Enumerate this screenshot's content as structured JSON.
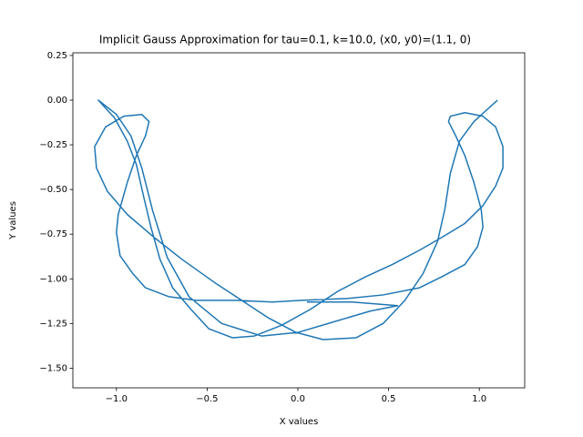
{
  "chart_data": {
    "type": "line",
    "title": "Implicit Gauss Approximation for tau=0.1, k=10.0, (x0, y0)=(1.1, 0)",
    "xlabel": "X values",
    "ylabel": "Y values",
    "color": "#1f77b4",
    "xlim": [
      -1.24,
      1.25
    ],
    "ylim": [
      -1.61,
      0.265
    ],
    "xticks": [
      {
        "value": -1.0,
        "label": "−1.0"
      },
      {
        "value": -0.5,
        "label": "−0.5"
      },
      {
        "value": 0.0,
        "label": "0.0"
      },
      {
        "value": 0.5,
        "label": "0.5"
      },
      {
        "value": 1.0,
        "label": "1.0"
      }
    ],
    "yticks": [
      0.25,
      {
        "value": 0.0,
        "label": "0.00"
      },
      {
        "value": -0.25,
        "label": "−0.25"
      },
      {
        "value": -0.5,
        "label": "−0.50"
      },
      {
        "value": -0.75,
        "label": "−0.75"
      },
      {
        "value": -1.0,
        "label": "−1.00"
      },
      {
        "value": -1.25,
        "label": "−1.25"
      },
      {
        "value": -1.5,
        "label": "−1.50"
      }
    ],
    "x": [
      1.1,
      0.97,
      0.89,
      0.84,
      0.81,
      0.77,
      0.69,
      0.59,
      0.47,
      0.32,
      0.14,
      -0.01,
      -0.16,
      -0.31,
      -0.46,
      -0.64,
      -0.79,
      -0.94,
      -1.05,
      -1.11,
      -1.12,
      -1.06,
      -0.96,
      -0.86,
      -0.82,
      -0.84,
      -0.89,
      -0.94,
      -0.99,
      -1.0,
      -0.98,
      -0.91,
      -0.84,
      -0.71,
      -0.56,
      -0.34,
      -0.14,
      0.02,
      0.27,
      0.47,
      0.67,
      0.79,
      0.92,
      0.99,
      1.02,
      1.01,
      0.97,
      0.92,
      0.87,
      0.83,
      0.84,
      0.92,
      1.02,
      1.09,
      1.13,
      1.13,
      1.09,
      1.02,
      0.92,
      0.79,
      0.67,
      0.52,
      0.37,
      0.22,
      0.07,
      -0.09,
      -0.24,
      -0.36,
      -0.49,
      -0.59,
      -0.69,
      -0.76,
      -0.81,
      -0.85,
      -0.89,
      -0.94,
      -1.01,
      -1.1,
      -1.0,
      -0.92,
      -0.86,
      -0.8,
      -0.72,
      -0.6,
      -0.42,
      -0.2,
      0.0,
      0.2,
      0.4,
      0.55,
      0.3,
      0.05
    ],
    "values": [
      0.0,
      -0.12,
      -0.23,
      -0.41,
      -0.61,
      -0.79,
      -0.97,
      -1.12,
      -1.25,
      -1.33,
      -1.34,
      -1.3,
      -1.22,
      -1.12,
      -1.02,
      -0.89,
      -0.77,
      -0.64,
      -0.51,
      -0.38,
      -0.26,
      -0.15,
      -0.09,
      -0.08,
      -0.12,
      -0.2,
      -0.31,
      -0.46,
      -0.64,
      -0.74,
      -0.87,
      -0.97,
      -1.05,
      -1.1,
      -1.12,
      -1.12,
      -1.13,
      -1.12,
      -1.11,
      -1.09,
      -1.05,
      -0.99,
      -0.92,
      -0.82,
      -0.71,
      -0.61,
      -0.46,
      -0.31,
      -0.2,
      -0.12,
      -0.09,
      -0.07,
      -0.09,
      -0.15,
      -0.26,
      -0.38,
      -0.48,
      -0.59,
      -0.69,
      -0.77,
      -0.84,
      -0.92,
      -0.99,
      -1.07,
      -1.17,
      -1.26,
      -1.32,
      -1.33,
      -1.28,
      -1.17,
      -1.05,
      -0.89,
      -0.71,
      -0.54,
      -0.36,
      -0.23,
      -0.1,
      0.0,
      -0.08,
      -0.2,
      -0.38,
      -0.62,
      -0.88,
      -1.1,
      -1.25,
      -1.32,
      -1.3,
      -1.24,
      -1.18,
      -1.15,
      -1.13,
      -1.13
    ]
  }
}
